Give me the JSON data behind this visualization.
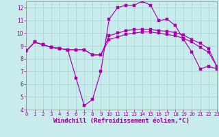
{
  "background_color": "#c8ecec",
  "grid_color": "#b0d8d8",
  "line_color": "#aa00aa",
  "xlabel": "Windchill (Refroidissement éolien,°C)",
  "xlabel_fontsize": 6.5,
  "xlim": [
    0,
    23
  ],
  "ylim": [
    4,
    12.5
  ],
  "yticks": [
    4,
    5,
    6,
    7,
    8,
    9,
    10,
    11,
    12
  ],
  "xticks": [
    0,
    1,
    2,
    3,
    4,
    5,
    6,
    7,
    8,
    9,
    10,
    11,
    12,
    13,
    14,
    15,
    16,
    17,
    18,
    19,
    20,
    21,
    22,
    23
  ],
  "curve1_x": [
    0,
    1,
    2,
    3,
    4,
    5,
    6,
    7,
    8,
    9,
    10,
    11,
    12,
    13,
    14,
    15,
    16,
    17,
    18,
    19,
    20,
    21,
    22,
    23
  ],
  "curve1_y": [
    8.6,
    9.3,
    9.1,
    8.9,
    8.8,
    8.7,
    6.5,
    4.3,
    4.8,
    7.0,
    11.1,
    12.0,
    12.2,
    12.2,
    12.5,
    12.2,
    11.0,
    11.1,
    10.6,
    9.5,
    8.5,
    7.2,
    7.4,
    7.2
  ],
  "curve2_x": [
    0,
    1,
    2,
    3,
    4,
    5,
    6,
    7,
    8,
    9,
    10,
    11,
    12,
    13,
    14,
    15,
    16,
    17,
    18,
    19,
    20,
    21,
    22,
    23
  ],
  "curve2_y": [
    8.6,
    9.3,
    9.1,
    8.9,
    8.8,
    8.7,
    8.7,
    8.7,
    8.3,
    8.3,
    9.8,
    10.0,
    10.2,
    10.3,
    10.3,
    10.3,
    10.2,
    10.15,
    10.05,
    9.85,
    9.5,
    9.2,
    8.8,
    7.4
  ],
  "curve3_x": [
    0,
    1,
    2,
    3,
    4,
    5,
    6,
    7,
    8,
    9,
    10,
    11,
    12,
    13,
    14,
    15,
    16,
    17,
    18,
    19,
    20,
    21,
    22,
    23
  ],
  "curve3_y": [
    8.6,
    9.3,
    9.1,
    8.9,
    8.8,
    8.7,
    8.7,
    8.7,
    8.3,
    8.3,
    9.5,
    9.7,
    9.9,
    10.0,
    10.1,
    10.1,
    10.0,
    9.9,
    9.8,
    9.6,
    9.3,
    8.9,
    8.5,
    7.4
  ]
}
